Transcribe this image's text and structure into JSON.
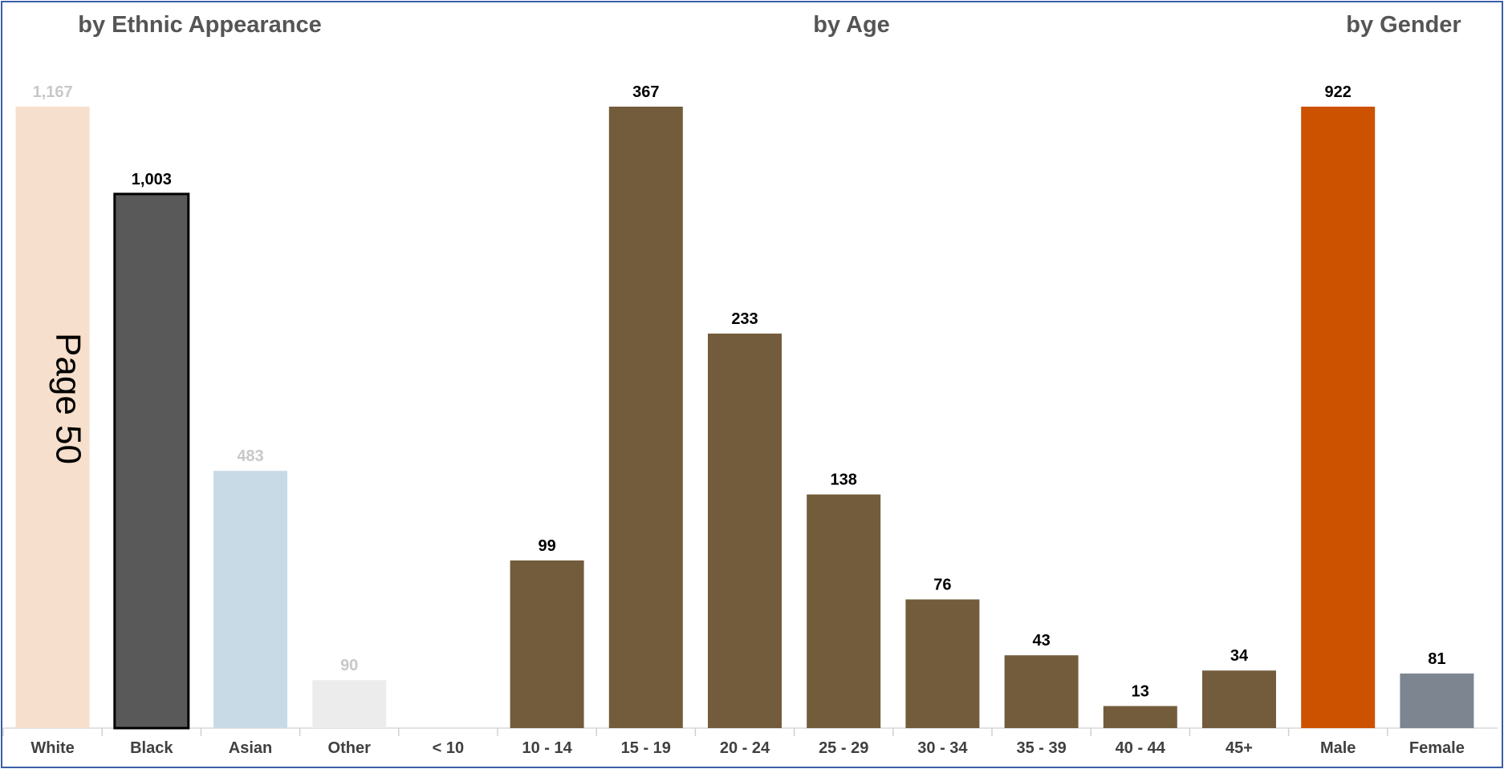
{
  "page_label": "Page 50",
  "chart_data": [
    {
      "type": "bar",
      "title": "by Ethnic Appearance",
      "categories": [
        "White",
        "Black",
        "Asian",
        "Other"
      ],
      "values": [
        1167,
        1003,
        483,
        90
      ],
      "value_labels": [
        "1,167",
        "1,003",
        "483",
        "90"
      ],
      "colors": [
        "#f6dfcc",
        "#595959",
        "#c8dae6",
        "#ececec"
      ],
      "highlighted": "Black",
      "ylim": [
        0,
        1167
      ]
    },
    {
      "type": "bar",
      "title": "by Age",
      "categories": [
        "< 10",
        "10 - 14",
        "15 - 19",
        "20 - 24",
        "25 - 29",
        "30 - 34",
        "35 - 39",
        "40 - 44",
        "45+"
      ],
      "values": [
        0,
        99,
        367,
        233,
        138,
        76,
        43,
        13,
        34
      ],
      "value_labels": [
        "",
        "99",
        "367",
        "233",
        "138",
        "76",
        "43",
        "13",
        "34"
      ],
      "colors": [
        "#735c3c"
      ],
      "ylim": [
        0,
        367
      ]
    },
    {
      "type": "bar",
      "title": "by Gender",
      "categories": [
        "Male",
        "Female"
      ],
      "values": [
        922,
        81
      ],
      "value_labels": [
        "922",
        "81"
      ],
      "colors": [
        "#cc5200",
        "#7d8591"
      ],
      "ylim": [
        0,
        922
      ]
    }
  ]
}
